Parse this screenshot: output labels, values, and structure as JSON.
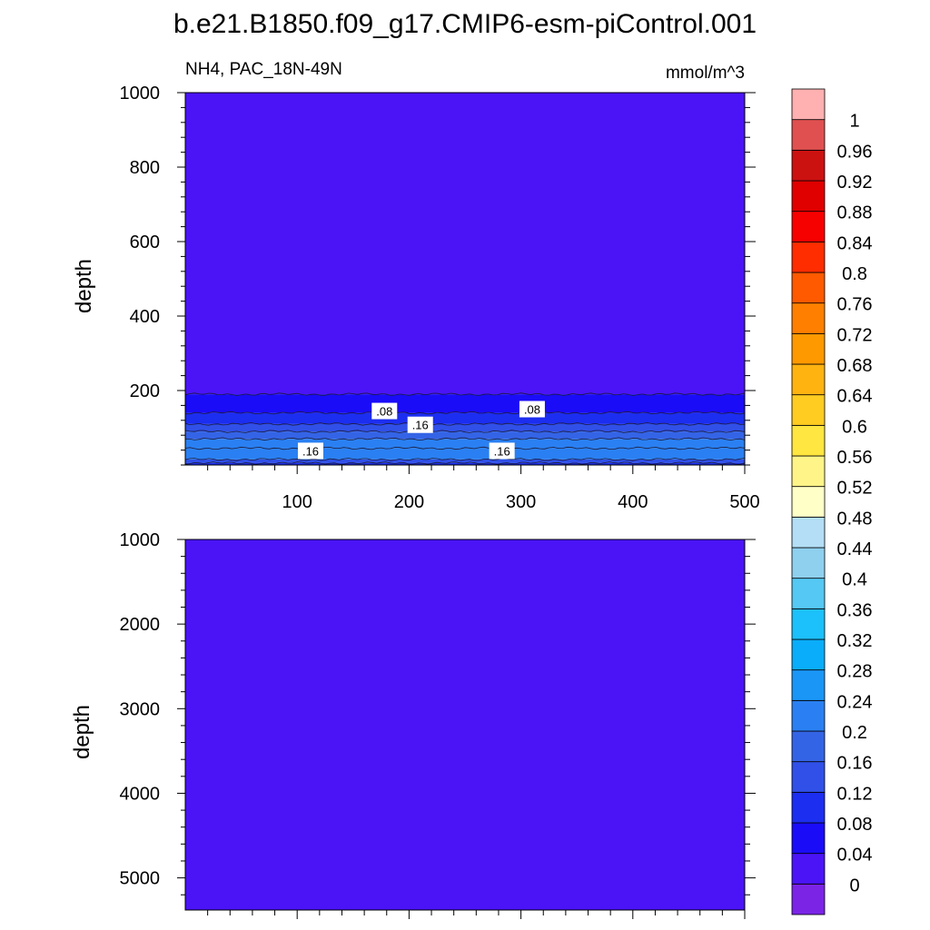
{
  "title": "b.e21.B1850.f09_g17.CMIP6-esm-piControl.001",
  "subtitle_left": "NH4, PAC_18N-49N",
  "subtitle_right": "mmol/m^3",
  "chart_data": [
    {
      "type": "heatmap",
      "panel": "upper",
      "ylabel": "depth",
      "xlim": [
        0,
        500
      ],
      "ylim": [
        1000,
        0
      ],
      "xticks": [
        100,
        200,
        300,
        400,
        500
      ],
      "xtick_labels": [
        "100",
        "200",
        "300",
        "400",
        "500"
      ],
      "yticks": [
        200,
        400,
        600,
        800,
        1000
      ],
      "ytick_labels": [
        "200",
        "400",
        "600",
        "800",
        "1000"
      ],
      "depth_profile": [
        {
          "from": 0,
          "to": 5,
          "value": 0.1
        },
        {
          "from": 5,
          "to": 15,
          "value": 0.14
        },
        {
          "from": 15,
          "to": 45,
          "value": 0.2
        },
        {
          "from": 45,
          "to": 70,
          "value": 0.22
        },
        {
          "from": 70,
          "to": 90,
          "value": 0.18
        },
        {
          "from": 90,
          "to": 110,
          "value": 0.14
        },
        {
          "from": 110,
          "to": 140,
          "value": 0.1
        },
        {
          "from": 140,
          "to": 190,
          "value": 0.06
        },
        {
          "from": 190,
          "to": 1000,
          "value": 0.02
        }
      ],
      "contour_labels": [
        {
          "text": ".16",
          "x": 112,
          "y": 38
        },
        {
          "text": ".16",
          "x": 283,
          "y": 38
        },
        {
          "text": ".16",
          "x": 210,
          "y": 108
        },
        {
          "text": ".08",
          "x": 178,
          "y": 145
        },
        {
          "text": ".08",
          "x": 310,
          "y": 150
        }
      ]
    },
    {
      "type": "heatmap",
      "panel": "lower",
      "ylabel": "depth",
      "xlim": [
        0,
        500
      ],
      "ylim": [
        1000,
        5380
      ],
      "yticks": [
        1000,
        2000,
        3000,
        4000,
        5000
      ],
      "ytick_labels": [
        "1000",
        "2000",
        "3000",
        "4000",
        "5000"
      ],
      "depth_profile": [
        {
          "from": 1000,
          "to": 5380,
          "value": 0.02
        }
      ]
    }
  ],
  "colorbar": {
    "levels": [
      "0",
      "0.04",
      "0.08",
      "0.12",
      "0.16",
      "0.2",
      "0.24",
      "0.28",
      "0.32",
      "0.36",
      "0.4",
      "0.44",
      "0.48",
      "0.52",
      "0.56",
      "0.6",
      "0.64",
      "0.68",
      "0.72",
      "0.76",
      "0.8",
      "0.84",
      "0.88",
      "0.92",
      "0.96",
      "1"
    ],
    "colors": [
      "#7b24e6",
      "#4a14f7",
      "#1a0cf7",
      "#1c2ef0",
      "#3050e8",
      "#3464e6",
      "#2a80f2",
      "#1a96f7",
      "#0aadfa",
      "#1cc0fb",
      "#55c8f4",
      "#8fd0ef",
      "#b3def5",
      "#ffffc8",
      "#fff487",
      "#ffe640",
      "#ffcc22",
      "#ffb311",
      "#ff9900",
      "#ff7f00",
      "#ff5a00",
      "#ff2d00",
      "#f70000",
      "#e00000",
      "#cc1111",
      "#e05050",
      "#ffb0b0"
    ]
  }
}
